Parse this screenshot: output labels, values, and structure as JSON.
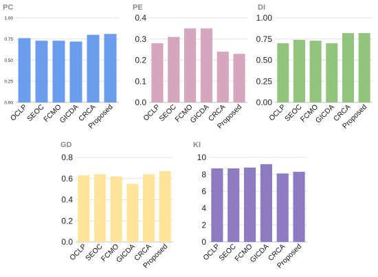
{
  "chart_data": [
    {
      "type": "bar",
      "title": "PC",
      "categories": [
        "OCLP",
        "SEOC",
        "FCMO",
        "GICDA",
        "CRCA",
        "Proposed"
      ],
      "values": [
        0.76,
        0.73,
        0.73,
        0.72,
        0.8,
        0.81
      ],
      "ylim": [
        0,
        1.0
      ],
      "yticks": [
        "0.00",
        "0.25",
        "0.50",
        "0.75",
        "1.00"
      ],
      "color": "#6c9ded",
      "grid": true
    },
    {
      "type": "bar",
      "title": "PE",
      "categories": [
        "OCLP",
        "SEOC",
        "FCMO",
        "GICDA",
        "CRCA",
        "Proposed"
      ],
      "values": [
        0.28,
        0.31,
        0.35,
        0.35,
        0.24,
        0.23
      ],
      "ylim": [
        0,
        0.4
      ],
      "yticks": [
        "0.0",
        "0.1",
        "0.2",
        "0.3",
        "0.4"
      ],
      "color": "#d5a6bd",
      "grid": true
    },
    {
      "type": "bar",
      "title": "DI",
      "categories": [
        "OCLP",
        "SEOC",
        "FCMO",
        "GICDA",
        "CRCA",
        "Proposed"
      ],
      "values": [
        0.7,
        0.74,
        0.73,
        0.7,
        0.82,
        0.82
      ],
      "ylim": [
        0,
        1.0
      ],
      "yticks": [
        "0.00",
        "0.25",
        "0.50",
        "0.75",
        "1.00"
      ],
      "color": "#93c47d",
      "grid": true
    },
    {
      "type": "bar",
      "title": "GD",
      "categories": [
        "OCLP",
        "SEOC",
        "FCMO",
        "GICDA",
        "CRCA",
        "Proposed"
      ],
      "values": [
        0.63,
        0.64,
        0.62,
        0.55,
        0.64,
        0.67
      ],
      "ylim": [
        0,
        0.8
      ],
      "yticks": [
        "0.0",
        "0.2",
        "0.4",
        "0.6",
        "0.8"
      ],
      "color": "#ffe599",
      "grid": true
    },
    {
      "type": "bar",
      "title": "KI",
      "categories": [
        "OCLP",
        "SEOC",
        "FCMO",
        "GICDA",
        "CRCA",
        "Proposed"
      ],
      "values": [
        8.7,
        8.7,
        8.8,
        9.2,
        8.1,
        8.3
      ],
      "ylim": [
        0,
        10
      ],
      "yticks": [
        "0",
        "2",
        "4",
        "6",
        "8",
        "10"
      ],
      "color": "#8e7cc3",
      "grid": true
    }
  ]
}
